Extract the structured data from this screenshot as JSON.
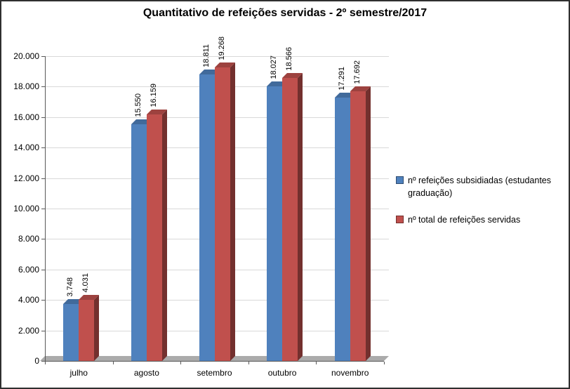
{
  "chart_data": {
    "type": "bar",
    "style": "3d-clustered-column",
    "title": "Quantitativo de refeições servidas - 2º semestre/2017",
    "categories": [
      "julho",
      "agosto",
      "setembro",
      "outubro",
      "novembro"
    ],
    "series": [
      {
        "name": "nº refeições subsidiadas (estudantes graduação)",
        "color": "#4F81BD",
        "values": [
          3748,
          15550,
          18811,
          18027,
          17291
        ],
        "labels": [
          "3.748",
          "15.550",
          "18.811",
          "18.027",
          "17.291"
        ]
      },
      {
        "name": "nº total de refeições servidas",
        "color": "#C0504D",
        "values": [
          4031,
          16159,
          19268,
          18566,
          17692
        ],
        "labels": [
          "4.031",
          "16.159",
          "19.268",
          "18.566",
          "17.692"
        ]
      }
    ],
    "y_axis": {
      "min": 0,
      "max": 20000,
      "step": 2000,
      "tick_labels": [
        "0",
        "2.000",
        "4.000",
        "6.000",
        "8.000",
        "10.000",
        "12.000",
        "14.000",
        "16.000",
        "18.000",
        "20.000"
      ]
    },
    "legend_position": "right",
    "grid": true
  }
}
